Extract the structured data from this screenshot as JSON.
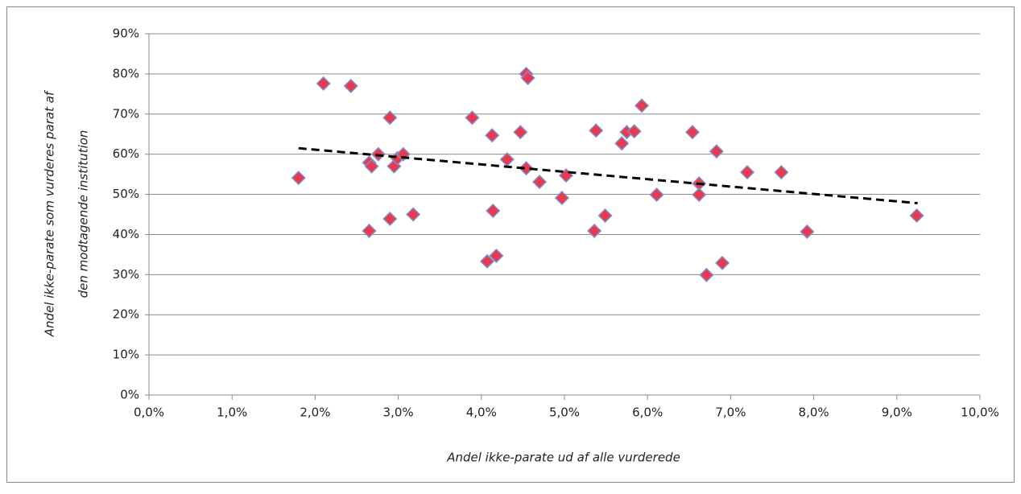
{
  "chart_data": {
    "type": "scatter",
    "xlabel": "Andel ikke-parate ud af alle vurderede",
    "ylabel": [
      "Andel ikke-parate som vurderes parat af",
      "den modtagende institution"
    ],
    "xlim": [
      0,
      10
    ],
    "ylim": [
      0,
      90
    ],
    "xticks": [
      {
        "value": 0,
        "label": "0,0%"
      },
      {
        "value": 1,
        "label": "1,0%"
      },
      {
        "value": 2,
        "label": "2,0%"
      },
      {
        "value": 3,
        "label": "3,0%"
      },
      {
        "value": 4,
        "label": "4,0%"
      },
      {
        "value": 5,
        "label": "5,0%"
      },
      {
        "value": 6,
        "label": "6,0%"
      },
      {
        "value": 7,
        "label": "7,0%"
      },
      {
        "value": 8,
        "label": "8,0%"
      },
      {
        "value": 9,
        "label": "9,0%"
      },
      {
        "value": 10,
        "label": "10,0%"
      }
    ],
    "yticks": [
      {
        "value": 0,
        "label": "0%"
      },
      {
        "value": 10,
        "label": "10%"
      },
      {
        "value": 20,
        "label": "20%"
      },
      {
        "value": 30,
        "label": "30%"
      },
      {
        "value": 40,
        "label": "40%"
      },
      {
        "value": 50,
        "label": "50%"
      },
      {
        "value": 60,
        "label": "60%"
      },
      {
        "value": 70,
        "label": "70%"
      },
      {
        "value": 80,
        "label": "80%"
      },
      {
        "value": 90,
        "label": "90%"
      }
    ],
    "grid": true,
    "series": [
      {
        "color": "#e8394f",
        "x": [
          1.8,
          2.1,
          2.43,
          2.65,
          2.65,
          2.68,
          2.76,
          2.9,
          2.9,
          2.95,
          2.99,
          3.06,
          3.18,
          3.89,
          4.07,
          4.13,
          4.14,
          4.18,
          4.31,
          4.47,
          4.54,
          4.56,
          4.54,
          4.7,
          4.97,
          5.02,
          5.36,
          5.38,
          5.49,
          5.69,
          5.75,
          5.84,
          5.93,
          6.11,
          6.54,
          6.62,
          6.62,
          6.71,
          6.83,
          6.9,
          7.2,
          7.61,
          7.92,
          9.24
        ],
        "values": [
          54.1,
          77.6,
          77.0,
          40.9,
          57.9,
          57.0,
          60.0,
          69.1,
          43.9,
          57.0,
          59.0,
          60.0,
          45.0,
          69.1,
          33.3,
          64.7,
          45.9,
          34.7,
          58.7,
          65.5,
          80.0,
          79.0,
          56.5,
          53.1,
          49.1,
          54.7,
          40.9,
          65.9,
          44.7,
          62.7,
          65.5,
          65.7,
          72.1,
          49.9,
          65.5,
          52.7,
          49.9,
          29.9,
          60.7,
          32.9,
          55.5,
          55.5,
          40.7,
          44.7
        ]
      }
    ],
    "trendline": {
      "x": [
        1.8,
        9.25
      ],
      "values": [
        61.5,
        47.8
      ]
    }
  }
}
